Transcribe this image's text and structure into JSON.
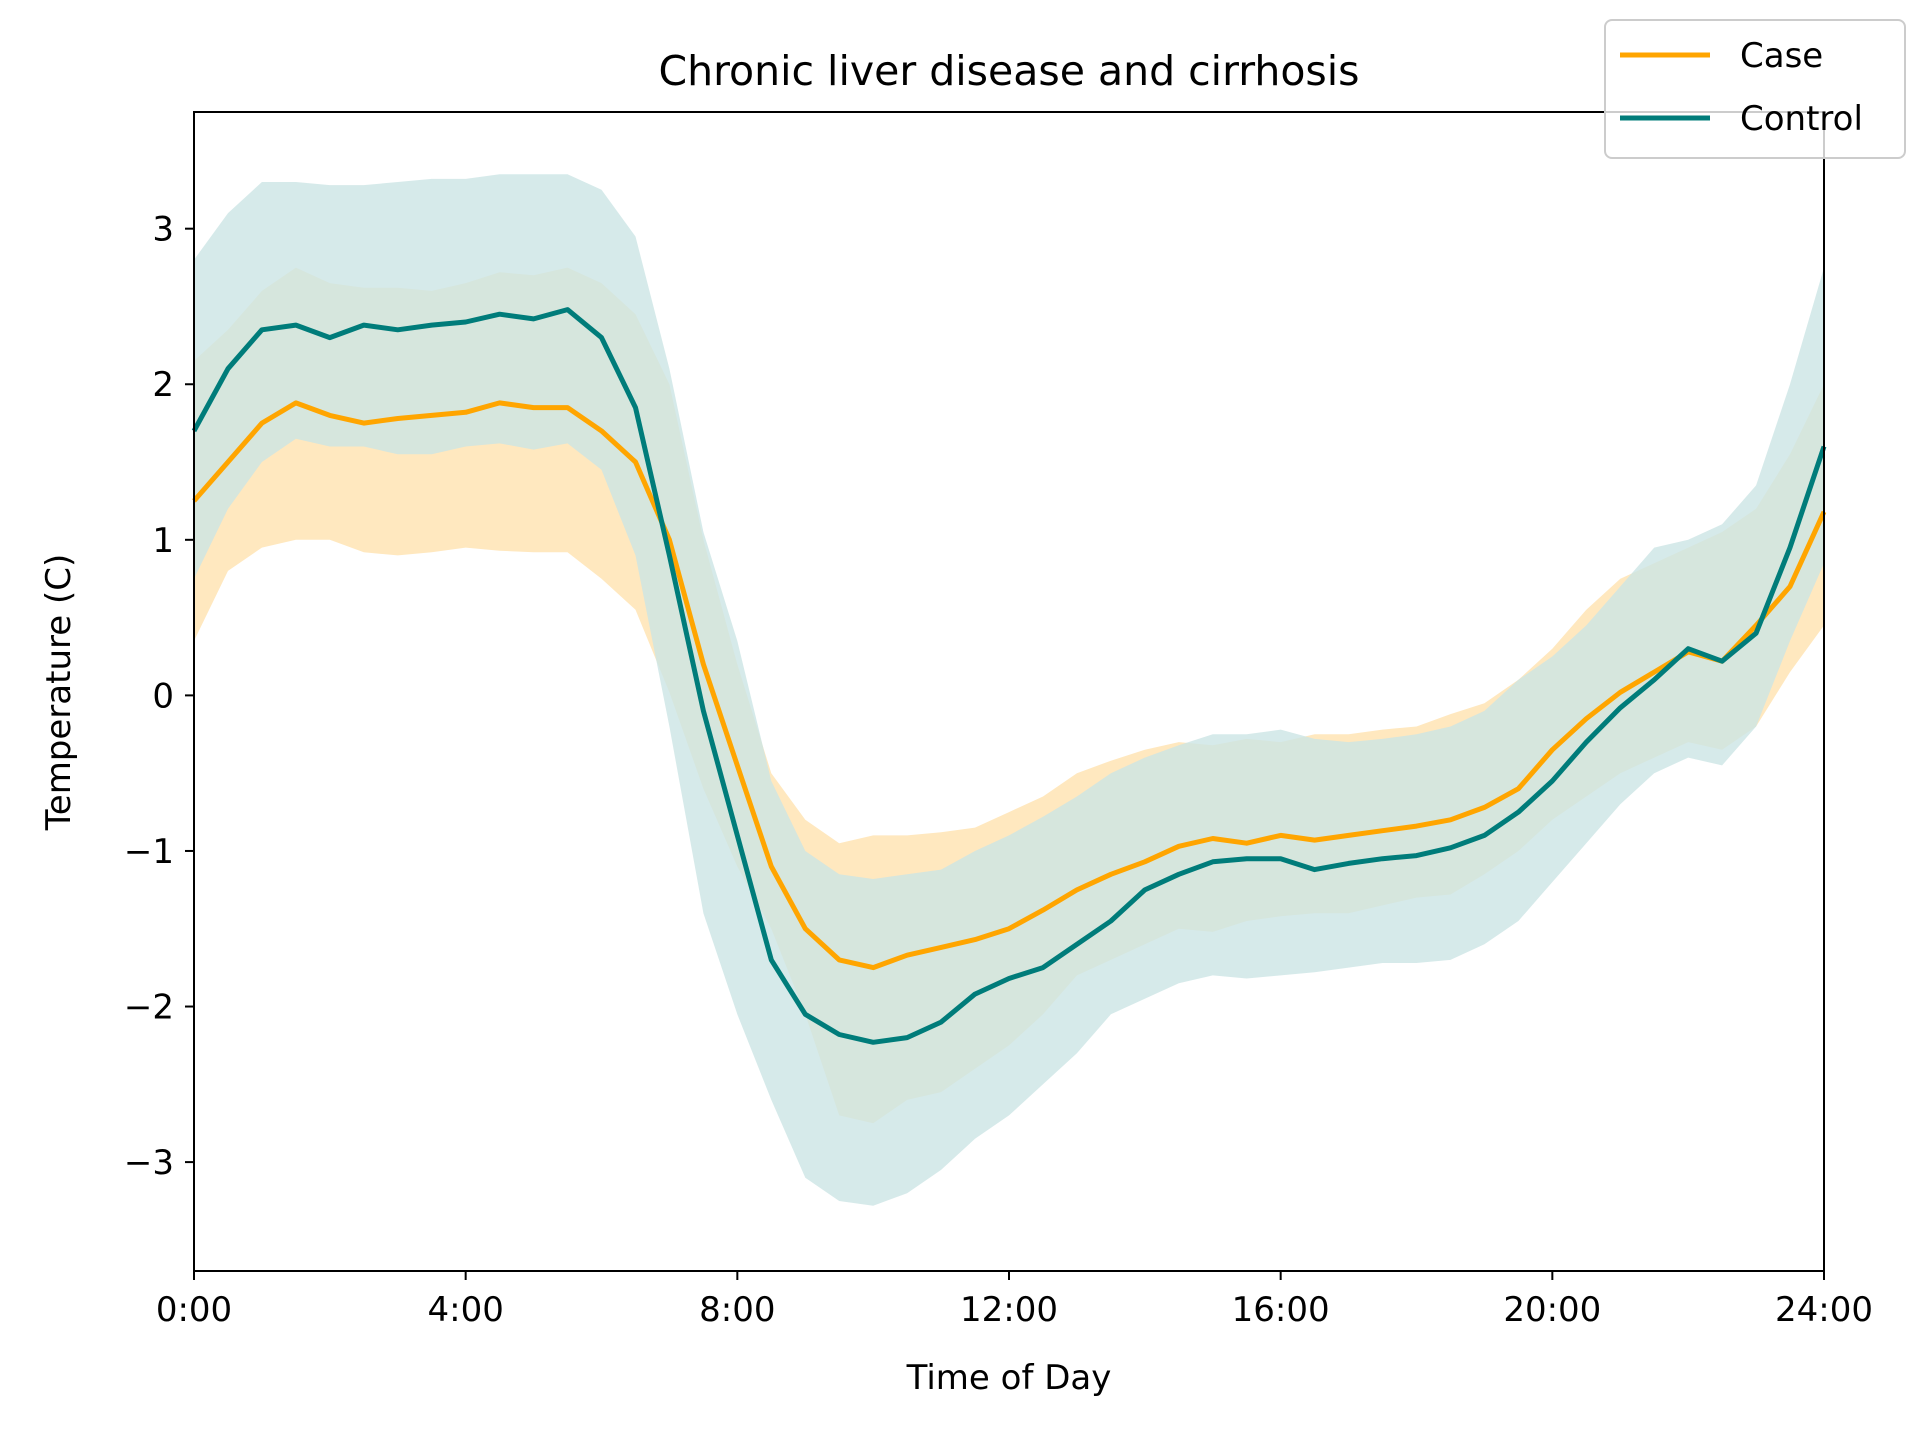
{
  "chart_data": {
    "type": "line",
    "title": "Chronic liver disease and cirrhosis",
    "xlabel": "Time of Day",
    "ylabel": "Temperature (C)",
    "xlim": [
      0,
      24
    ],
    "ylim": [
      -3.7,
      3.75
    ],
    "x_ticks": [
      {
        "value": 0,
        "label": "0:00"
      },
      {
        "value": 4,
        "label": "4:00"
      },
      {
        "value": 8,
        "label": "8:00"
      },
      {
        "value": 12,
        "label": "12:00"
      },
      {
        "value": 16,
        "label": "16:00"
      },
      {
        "value": 20,
        "label": "20:00"
      },
      {
        "value": 24,
        "label": "24:00"
      }
    ],
    "y_ticks": [
      {
        "value": 3,
        "label": "3"
      },
      {
        "value": 2,
        "label": "2"
      },
      {
        "value": 1,
        "label": "1"
      },
      {
        "value": 0,
        "label": "0"
      },
      {
        "value": -1,
        "label": "−1"
      },
      {
        "value": -2,
        "label": "−2"
      },
      {
        "value": -3,
        "label": "−3"
      }
    ],
    "grid": false,
    "legend": {
      "placement": "top-right"
    },
    "x": [
      0,
      0.5,
      1,
      1.5,
      2,
      2.5,
      3,
      3.5,
      4,
      4.5,
      5,
      5.5,
      6,
      6.5,
      7,
      7.5,
      8,
      8.5,
      9,
      9.5,
      10,
      10.5,
      11,
      11.5,
      12,
      12.5,
      13,
      13.5,
      14,
      14.5,
      15,
      15.5,
      16,
      16.5,
      17,
      17.5,
      18,
      18.5,
      19,
      19.5,
      20,
      20.5,
      21,
      21.5,
      22,
      22.5,
      23,
      23.5,
      24
    ],
    "series": [
      {
        "name": "Case",
        "color": "#FFA500",
        "band_color": "#FFE8BF",
        "values": [
          1.25,
          1.5,
          1.75,
          1.88,
          1.8,
          1.75,
          1.78,
          1.8,
          1.82,
          1.88,
          1.85,
          1.85,
          1.7,
          1.5,
          1.0,
          0.2,
          -0.45,
          -1.1,
          -1.5,
          -1.7,
          -1.75,
          -1.67,
          -1.62,
          -1.57,
          -1.5,
          -1.38,
          -1.25,
          -1.15,
          -1.07,
          -0.97,
          -0.92,
          -0.95,
          -0.9,
          -0.93,
          -0.9,
          -0.87,
          -0.84,
          -0.8,
          -0.72,
          -0.6,
          -0.35,
          -0.15,
          0.02,
          0.15,
          0.28,
          0.22,
          0.45,
          0.7,
          1.18
        ],
        "lower": [
          0.35,
          0.8,
          0.95,
          1.0,
          1.0,
          0.92,
          0.9,
          0.92,
          0.95,
          0.93,
          0.92,
          0.92,
          0.75,
          0.55,
          0.02,
          -0.6,
          -1.1,
          -1.5,
          -2.05,
          -2.7,
          -2.75,
          -2.6,
          -2.55,
          -2.4,
          -2.25,
          -2.05,
          -1.8,
          -1.7,
          -1.6,
          -1.5,
          -1.52,
          -1.45,
          -1.42,
          -1.4,
          -1.4,
          -1.35,
          -1.3,
          -1.28,
          -1.15,
          -1.0,
          -0.8,
          -0.65,
          -0.5,
          -0.4,
          -0.3,
          -0.35,
          -0.2,
          0.15,
          0.45
        ],
        "upper": [
          2.15,
          2.35,
          2.6,
          2.75,
          2.65,
          2.62,
          2.62,
          2.6,
          2.65,
          2.72,
          2.7,
          2.75,
          2.65,
          2.45,
          2.0,
          1.0,
          0.2,
          -0.5,
          -0.8,
          -0.95,
          -0.9,
          -0.9,
          -0.88,
          -0.85,
          -0.75,
          -0.65,
          -0.5,
          -0.42,
          -0.35,
          -0.3,
          -0.32,
          -0.28,
          -0.3,
          -0.25,
          -0.25,
          -0.22,
          -0.2,
          -0.12,
          -0.05,
          0.1,
          0.3,
          0.55,
          0.75,
          0.85,
          0.95,
          1.05,
          1.2,
          1.55,
          2.0
        ]
      },
      {
        "name": "Control",
        "color": "#007C7A",
        "band_color": "#CCE5E5",
        "values": [
          1.7,
          2.1,
          2.35,
          2.38,
          2.3,
          2.38,
          2.35,
          2.38,
          2.4,
          2.45,
          2.42,
          2.48,
          2.3,
          1.85,
          0.9,
          -0.1,
          -0.9,
          -1.7,
          -2.05,
          -2.18,
          -2.23,
          -2.2,
          -2.1,
          -1.92,
          -1.82,
          -1.75,
          -1.6,
          -1.45,
          -1.25,
          -1.15,
          -1.07,
          -1.05,
          -1.05,
          -1.12,
          -1.08,
          -1.05,
          -1.03,
          -0.98,
          -0.9,
          -0.75,
          -0.55,
          -0.3,
          -0.08,
          0.1,
          0.3,
          0.22,
          0.4,
          0.95,
          1.6
        ],
        "lower": [
          0.75,
          1.2,
          1.5,
          1.65,
          1.6,
          1.6,
          1.55,
          1.55,
          1.6,
          1.62,
          1.58,
          1.62,
          1.45,
          0.9,
          -0.2,
          -1.4,
          -2.05,
          -2.6,
          -3.1,
          -3.25,
          -3.28,
          -3.2,
          -3.05,
          -2.85,
          -2.7,
          -2.5,
          -2.3,
          -2.05,
          -1.95,
          -1.85,
          -1.8,
          -1.82,
          -1.8,
          -1.78,
          -1.75,
          -1.72,
          -1.72,
          -1.7,
          -1.6,
          -1.45,
          -1.2,
          -0.95,
          -0.7,
          -0.5,
          -0.4,
          -0.45,
          -0.2,
          0.35,
          0.85
        ],
        "upper": [
          2.8,
          3.1,
          3.3,
          3.3,
          3.28,
          3.28,
          3.3,
          3.32,
          3.32,
          3.35,
          3.35,
          3.35,
          3.25,
          2.95,
          2.1,
          1.05,
          0.35,
          -0.55,
          -1.0,
          -1.15,
          -1.18,
          -1.15,
          -1.12,
          -1.0,
          -0.9,
          -0.78,
          -0.65,
          -0.5,
          -0.4,
          -0.32,
          -0.25,
          -0.25,
          -0.22,
          -0.28,
          -0.3,
          -0.28,
          -0.25,
          -0.2,
          -0.1,
          0.1,
          0.25,
          0.45,
          0.7,
          0.95,
          1.0,
          1.1,
          1.35,
          2.0,
          2.75
        ]
      }
    ]
  }
}
